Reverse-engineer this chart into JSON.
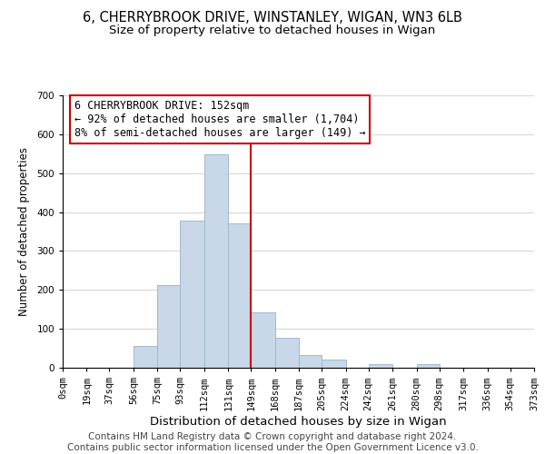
{
  "title": "6, CHERRYBROOK DRIVE, WINSTANLEY, WIGAN, WN3 6LB",
  "subtitle": "Size of property relative to detached houses in Wigan",
  "xlabel": "Distribution of detached houses by size in Wigan",
  "ylabel": "Number of detached properties",
  "bar_color": "#c8d8e8",
  "bar_edge_color": "#a0b8cc",
  "background_color": "#ffffff",
  "grid_color": "#d8d8d8",
  "vline_x": 149,
  "vline_color": "#cc0000",
  "ann_line1": "6 CHERRYBROOK DRIVE: 152sqm",
  "ann_line2": "← 92% of detached houses are smaller (1,704)",
  "ann_line3": "8% of semi-detached houses are larger (149) →",
  "annotation_box_color": "#cc0000",
  "annotation_box_fill": "#ffffff",
  "bin_edges": [
    0,
    19,
    37,
    56,
    75,
    93,
    112,
    131,
    149,
    168,
    187,
    205,
    224,
    242,
    261,
    280,
    298,
    317,
    336,
    354,
    373
  ],
  "bin_labels": [
    "0sqm",
    "19sqm",
    "37sqm",
    "56sqm",
    "75sqm",
    "93sqm",
    "112sqm",
    "131sqm",
    "149sqm",
    "168sqm",
    "187sqm",
    "205sqm",
    "224sqm",
    "242sqm",
    "261sqm",
    "280sqm",
    "298sqm",
    "317sqm",
    "336sqm",
    "354sqm",
    "373sqm"
  ],
  "bar_heights": [
    0,
    0,
    0,
    55,
    213,
    378,
    548,
    370,
    143,
    77,
    33,
    20,
    0,
    9,
    0,
    9,
    0,
    0,
    0,
    0
  ],
  "ylim": [
    0,
    700
  ],
  "yticks": [
    0,
    100,
    200,
    300,
    400,
    500,
    600,
    700
  ],
  "footer_text": "Contains HM Land Registry data © Crown copyright and database right 2024.\nContains public sector information licensed under the Open Government Licence v3.0.",
  "title_fontsize": 10.5,
  "subtitle_fontsize": 9.5,
  "xlabel_fontsize": 9.5,
  "ylabel_fontsize": 8.5,
  "tick_fontsize": 7.5,
  "ann_fontsize": 8.5,
  "footer_fontsize": 7.5
}
